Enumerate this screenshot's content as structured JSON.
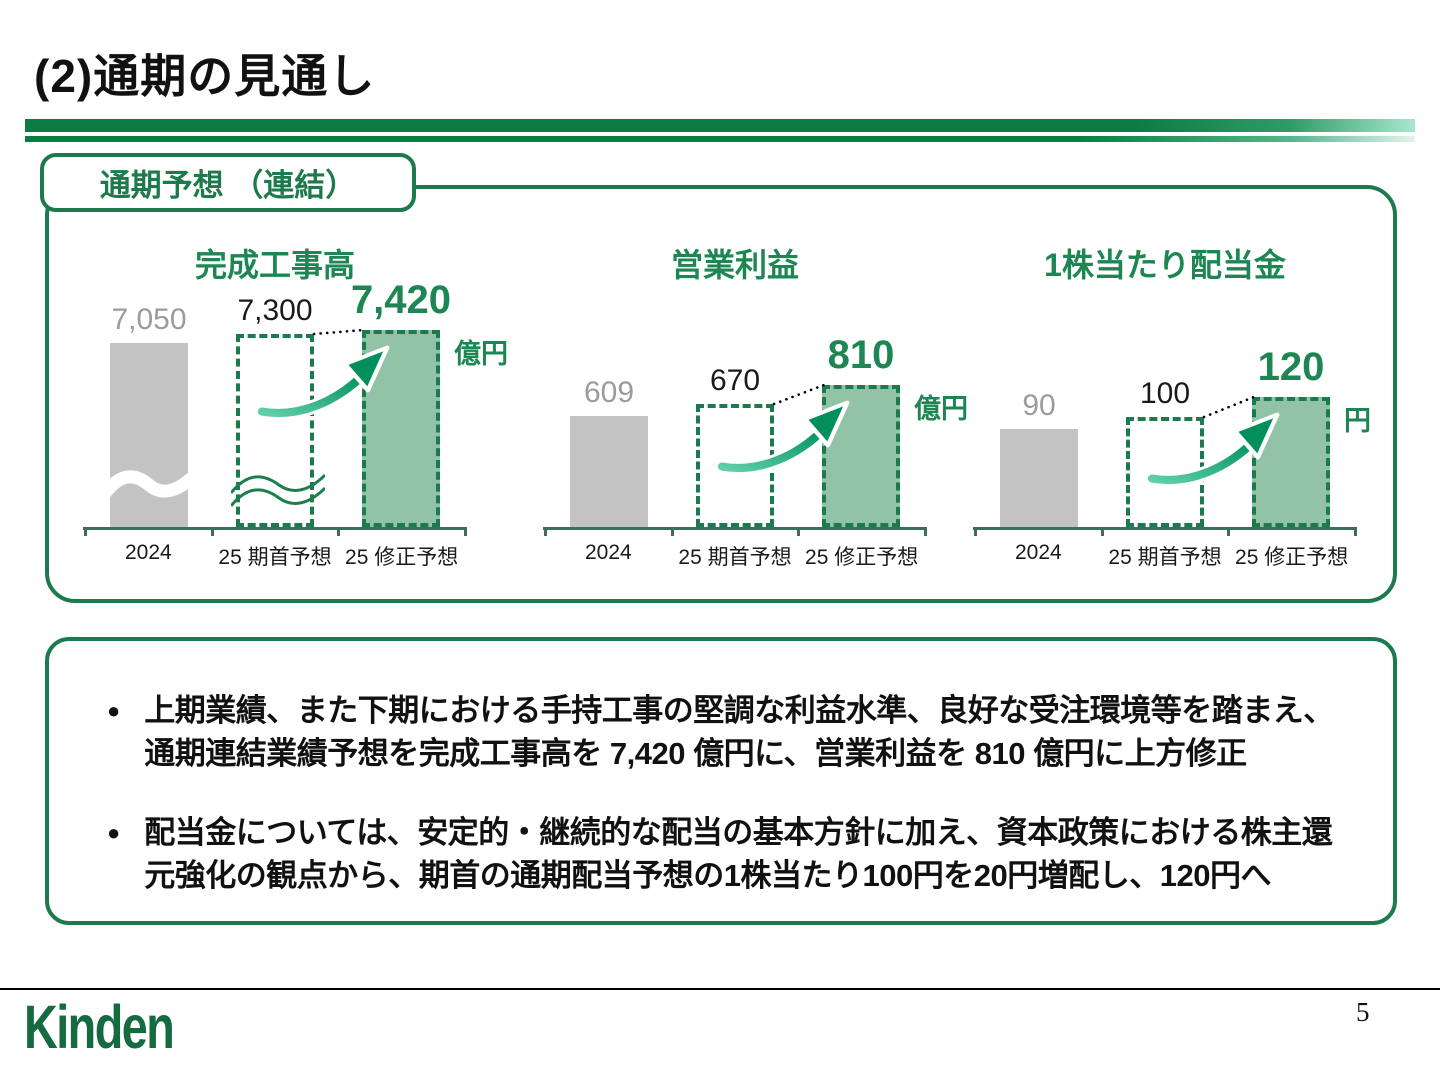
{
  "page": {
    "title": "(2)通期の見通し",
    "page_number": "5",
    "logo_text": "Kinden"
  },
  "panel": {
    "label": "通期予想 （連結）"
  },
  "chart_data": [
    {
      "type": "bar",
      "title": "完成工事高",
      "unit": "億円",
      "categories": [
        "2024",
        "25 期首予想",
        "25 修正予想"
      ],
      "values": [
        7050,
        7300,
        7420
      ],
      "value_labels": [
        "7,050",
        "7,300",
        "7,420"
      ],
      "bar_roles": [
        "actual",
        "initial-forecast",
        "revised-forecast"
      ],
      "axis_break": true,
      "legend_position": "none",
      "grid": false
    },
    {
      "type": "bar",
      "title": "営業利益",
      "unit": "億円",
      "categories": [
        "2024",
        "25 期首予想",
        "25 修正予想"
      ],
      "values": [
        609,
        670,
        810
      ],
      "value_labels": [
        "609",
        "670",
        "810"
      ],
      "bar_roles": [
        "actual",
        "initial-forecast",
        "revised-forecast"
      ],
      "axis_break": false,
      "legend_position": "none",
      "grid": false
    },
    {
      "type": "bar",
      "title": "1株当たり配当金",
      "unit": "円",
      "categories": [
        "2024",
        "25 期首予想",
        "25 修正予想"
      ],
      "values": [
        90,
        100,
        120
      ],
      "value_labels": [
        "90",
        "100",
        "120"
      ],
      "bar_roles": [
        "actual",
        "initial-forecast",
        "revised-forecast"
      ],
      "axis_break": false,
      "legend_position": "none",
      "grid": false
    }
  ],
  "notes": {
    "bullet_glyph": "●",
    "bullets": [
      {
        "lines": [
          "上期業績、また下期における手持工事の堅調な利益水準、良好な受注環境等を踏まえ、",
          "通期連結業績予想を完成工事高を 7,420 億円に、営業利益を 810 億円に上方修正"
        ]
      },
      {
        "lines": [
          "配当金については、安定的・継続的な配当の基本方針に加え、資本政策における株主還",
          "元強化の観点から、期首の通期配当予想の1株当たり100円を20円増配し、120円へ"
        ]
      }
    ]
  },
  "colors": {
    "brand_green": "#1d7a4c",
    "text_green": "#1d8653",
    "bar_fill_green": "#92c3a7",
    "bar_dash_green": "#1b7a4e",
    "bar_gray": "#c3c3c4",
    "value_gray": "#9b9b9b",
    "stripe_green": "#0b7d44",
    "axis_green": "#3e6e56",
    "arrow_gradient": [
      "#5fcfa8",
      "#008f5d"
    ],
    "logo_green": "#156b3f"
  }
}
